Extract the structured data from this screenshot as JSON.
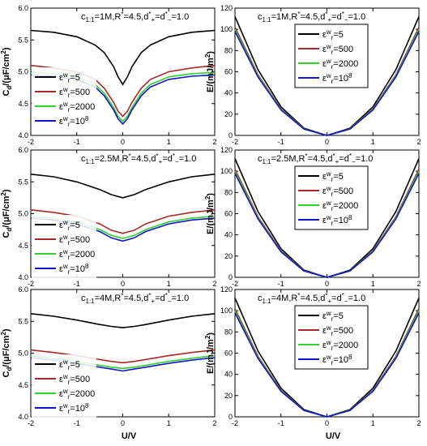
{
  "figure": {
    "xlabel_left": "U/V",
    "xlabel_right": "U/V",
    "ylabel_cap": "Cd/(μF/cm²)",
    "ylabel_energy": "E/(mJ/m²)"
  },
  "chart_data": [
    {
      "type": "line",
      "panel": "a",
      "annotation": "c1:1=1M,R*=4.5,d*+=d*−=1.0",
      "ylabel": "Cd/(μF/cm²)",
      "xlabel": "",
      "xlim": [
        -2,
        2
      ],
      "ylim": [
        4.0,
        6.0
      ],
      "xticks": [
        -2,
        -1,
        0,
        1,
        2
      ],
      "yticks": [
        4.0,
        4.5,
        5.0,
        5.5,
        6.0
      ],
      "legend_position": "left-middle",
      "x": [
        -2.0,
        -1.5,
        -1.0,
        -0.6,
        -0.4,
        -0.2,
        -0.1,
        0.0,
        0.1,
        0.2,
        0.4,
        0.6,
        1.0,
        1.5,
        2.0
      ],
      "series": [
        {
          "name": "εwr=5",
          "color": "#000000",
          "values": [
            5.65,
            5.62,
            5.55,
            5.42,
            5.3,
            5.08,
            4.92,
            4.8,
            4.92,
            5.08,
            5.3,
            5.42,
            5.55,
            5.62,
            5.65
          ]
        },
        {
          "name": "εwr=500",
          "color": "#a82828",
          "values": [
            5.1,
            5.06,
            5.0,
            4.88,
            4.74,
            4.52,
            4.38,
            4.3,
            4.38,
            4.52,
            4.74,
            4.88,
            5.0,
            5.06,
            5.1
          ]
        },
        {
          "name": "εwr=2000",
          "color": "#2ed12e",
          "values": [
            4.99,
            4.97,
            4.92,
            4.8,
            4.66,
            4.44,
            4.3,
            4.22,
            4.3,
            4.44,
            4.66,
            4.8,
            4.92,
            4.97,
            4.99
          ]
        },
        {
          "name": "εwr=10⁸",
          "color": "#1414c8",
          "values": [
            4.95,
            4.93,
            4.88,
            4.76,
            4.62,
            4.4,
            4.26,
            4.18,
            4.26,
            4.4,
            4.62,
            4.76,
            4.88,
            4.93,
            4.95
          ]
        }
      ]
    },
    {
      "type": "line",
      "panel": "b",
      "annotation": "c1:1=1M,R*=4.5,d*+=d*−=1.0",
      "ylabel": "E/(mJ/m²)",
      "xlabel": "",
      "xlim": [
        -2,
        2
      ],
      "ylim": [
        0,
        120
      ],
      "xticks": [
        -2,
        -1,
        0,
        1,
        2
      ],
      "yticks": [
        0,
        20,
        40,
        60,
        80,
        100,
        120
      ],
      "legend_position": "top-right",
      "x": [
        -2.0,
        -1.5,
        -1.0,
        -0.5,
        0.0,
        0.5,
        1.0,
        1.5,
        2.0
      ],
      "series": [
        {
          "name": "εwr=5",
          "color": "#000000",
          "values": [
            112,
            62,
            27,
            6.8,
            0,
            6.8,
            27,
            62,
            112
          ]
        },
        {
          "name": "εwr=500",
          "color": "#a82828",
          "values": [
            102,
            57,
            25,
            6.2,
            0,
            6.2,
            25,
            57,
            102
          ]
        },
        {
          "name": "εwr=2000",
          "color": "#2ed12e",
          "values": [
            100,
            56,
            24.5,
            6.1,
            0,
            6.1,
            24.5,
            56,
            100
          ]
        },
        {
          "name": "εwr=10⁸",
          "color": "#1414c8",
          "values": [
            98,
            55,
            24,
            6.0,
            0,
            6.0,
            24,
            55,
            98
          ]
        }
      ]
    },
    {
      "type": "line",
      "panel": "c",
      "annotation": "c1:1=2.5M,R*=4.5,d*+=d*−=1.0",
      "ylabel": "Cd/(μF/cm²)",
      "xlabel": "",
      "xlim": [
        -2,
        2
      ],
      "ylim": [
        4.0,
        6.0
      ],
      "xticks": [
        -2,
        -1,
        0,
        1,
        2
      ],
      "yticks": [
        4.0,
        4.5,
        5.0,
        5.5,
        6.0
      ],
      "legend_position": "left-bottom",
      "x": [
        -2.0,
        -1.5,
        -1.0,
        -0.5,
        -0.25,
        0.0,
        0.25,
        0.5,
        1.0,
        1.5,
        2.0
      ],
      "series": [
        {
          "name": "εwr=5",
          "color": "#000000",
          "values": [
            5.62,
            5.58,
            5.5,
            5.38,
            5.3,
            5.25,
            5.3,
            5.38,
            5.5,
            5.58,
            5.62
          ]
        },
        {
          "name": "εwr=500",
          "color": "#a82828",
          "values": [
            5.06,
            5.02,
            4.96,
            4.84,
            4.74,
            4.69,
            4.74,
            4.84,
            4.96,
            5.02,
            5.06
          ]
        },
        {
          "name": "εwr=2000",
          "color": "#2ed12e",
          "values": [
            4.96,
            4.93,
            4.87,
            4.75,
            4.66,
            4.61,
            4.66,
            4.75,
            4.87,
            4.93,
            4.96
          ]
        },
        {
          "name": "εwr=10⁸",
          "color": "#1414c8",
          "values": [
            4.93,
            4.9,
            4.84,
            4.72,
            4.62,
            4.57,
            4.62,
            4.72,
            4.84,
            4.9,
            4.93
          ]
        }
      ]
    },
    {
      "type": "line",
      "panel": "d",
      "annotation": "c1:1=2.5M,R*=4.5,d*+=d*−=1.0",
      "ylabel": "E/(mJ/m²)",
      "xlabel": "",
      "xlim": [
        -2,
        2
      ],
      "ylim": [
        0,
        120
      ],
      "xticks": [
        -2,
        -1,
        0,
        1,
        2
      ],
      "yticks": [
        0,
        20,
        40,
        60,
        80,
        100,
        120
      ],
      "legend_position": "top-right",
      "x": [
        -2.0,
        -1.5,
        -1.0,
        -0.5,
        0.0,
        0.5,
        1.0,
        1.5,
        2.0
      ],
      "series": [
        {
          "name": "εwr=5",
          "color": "#000000",
          "values": [
            112,
            62,
            27,
            6.8,
            0,
            6.8,
            27,
            62,
            112
          ]
        },
        {
          "name": "εwr=500",
          "color": "#a82828",
          "values": [
            102,
            57,
            25,
            6.2,
            0,
            6.2,
            25,
            57,
            102
          ]
        },
        {
          "name": "εwr=2000",
          "color": "#2ed12e",
          "values": [
            100,
            56,
            24.5,
            6.1,
            0,
            6.1,
            24.5,
            56,
            100
          ]
        },
        {
          "name": "εwr=10⁸",
          "color": "#1414c8",
          "values": [
            98,
            55,
            24,
            6.0,
            0,
            6.0,
            24,
            55,
            98
          ]
        }
      ]
    },
    {
      "type": "line",
      "panel": "e",
      "annotation": "c1:1=4M,R*=4.5,d*+=d*−=1.0",
      "ylabel": "Cd/(μF/cm²)",
      "xlabel": "U/V",
      "xlim": [
        -2,
        2
      ],
      "ylim": [
        4.0,
        6.0
      ],
      "xticks": [
        -2,
        -1,
        0,
        1,
        2
      ],
      "yticks": [
        4.0,
        4.5,
        5.0,
        5.5,
        6.0
      ],
      "legend_position": "left-bottom",
      "x": [
        -2.0,
        -1.5,
        -1.0,
        -0.5,
        -0.25,
        0.0,
        0.25,
        0.5,
        1.0,
        1.5,
        2.0
      ],
      "series": [
        {
          "name": "εwr=5",
          "color": "#000000",
          "values": [
            5.62,
            5.58,
            5.52,
            5.45,
            5.42,
            5.4,
            5.42,
            5.45,
            5.52,
            5.58,
            5.62
          ]
        },
        {
          "name": "εwr=500",
          "color": "#a82828",
          "values": [
            5.05,
            5.01,
            4.96,
            4.9,
            4.87,
            4.85,
            4.87,
            4.9,
            4.96,
            5.01,
            5.05
          ]
        },
        {
          "name": "εwr=2000",
          "color": "#2ed12e",
          "values": [
            4.96,
            4.92,
            4.87,
            4.81,
            4.78,
            4.76,
            4.78,
            4.81,
            4.87,
            4.92,
            4.96
          ]
        },
        {
          "name": "εwr=10⁸",
          "color": "#1414c8",
          "values": [
            4.93,
            4.89,
            4.84,
            4.78,
            4.75,
            4.72,
            4.75,
            4.78,
            4.84,
            4.89,
            4.93
          ]
        }
      ]
    },
    {
      "type": "line",
      "panel": "f",
      "annotation": "c1:1=4M,R*=4.5,d*+=d*−=1.0",
      "ylabel": "E/(mJ/m²)",
      "xlabel": "U/V",
      "xlim": [
        -2,
        2
      ],
      "ylim": [
        0,
        120
      ],
      "xticks": [
        -2,
        -1,
        0,
        1,
        2
      ],
      "yticks": [
        0,
        20,
        40,
        60,
        80,
        100,
        120
      ],
      "legend_position": "top-right",
      "x": [
        -2.0,
        -1.5,
        -1.0,
        -0.5,
        0.0,
        0.5,
        1.0,
        1.5,
        2.0
      ],
      "series": [
        {
          "name": "εwr=5",
          "color": "#000000",
          "values": [
            112,
            62,
            27,
            6.8,
            0,
            6.8,
            27,
            62,
            112
          ]
        },
        {
          "name": "εwr=500",
          "color": "#a82828",
          "values": [
            102,
            57,
            25,
            6.2,
            0,
            6.2,
            25,
            57,
            102
          ]
        },
        {
          "name": "εwr=2000",
          "color": "#2ed12e",
          "values": [
            100,
            56,
            24.5,
            6.1,
            0,
            6.1,
            24.5,
            56,
            100
          ]
        },
        {
          "name": "εwr=10⁸",
          "color": "#1414c8",
          "values": [
            98,
            55,
            24,
            6.0,
            0,
            6.0,
            24,
            55,
            98
          ]
        }
      ]
    }
  ]
}
